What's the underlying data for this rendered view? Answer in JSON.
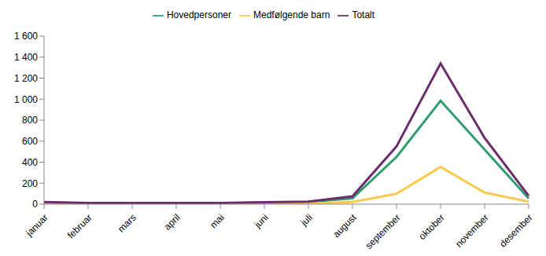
{
  "chart_data": {
    "type": "line",
    "categories": [
      "januar",
      "februar",
      "mars",
      "april",
      "mai",
      "juni",
      "juli",
      "august",
      "september",
      "oktober",
      "november",
      "desember"
    ],
    "series": [
      {
        "name": "Hovedpersoner",
        "color": "#2e9e6e",
        "values": [
          15,
          10,
          10,
          10,
          10,
          15,
          20,
          55,
          450,
          985,
          520,
          55
        ]
      },
      {
        "name": "Medfølgende barn",
        "color": "#f8c94a",
        "values": [
          5,
          2,
          2,
          2,
          2,
          3,
          5,
          20,
          100,
          355,
          110,
          25
        ]
      },
      {
        "name": "Totalt",
        "color": "#6b2c6b",
        "values": [
          20,
          12,
          12,
          12,
          12,
          18,
          25,
          75,
          550,
          1340,
          630,
          80
        ]
      }
    ],
    "ylim": [
      0,
      1600
    ],
    "yticks": [
      0,
      200,
      400,
      600,
      800,
      {
        "value": 1000,
        "label": "1 000"
      },
      {
        "value": 1200,
        "label": "1 200"
      },
      {
        "value": 1400,
        "label": "1 400"
      },
      {
        "value": 1600,
        "label": "1 600"
      }
    ],
    "grid": false,
    "legend": "top"
  }
}
